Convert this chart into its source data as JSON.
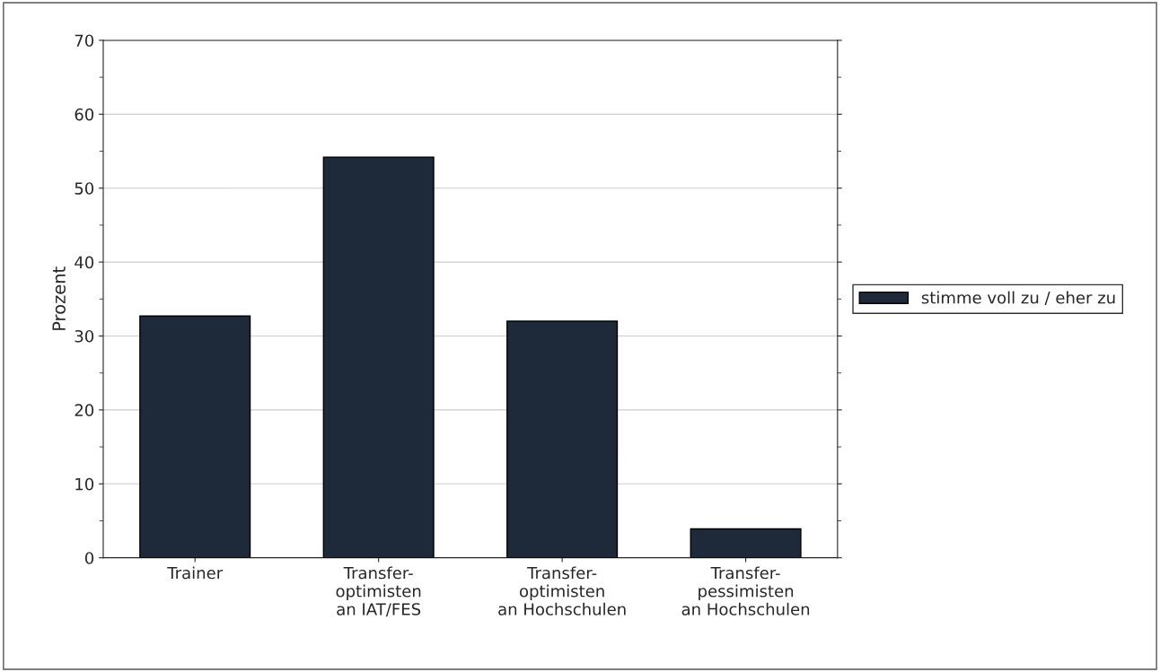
{
  "chart_data": {
    "type": "bar",
    "ylabel": "Prozent",
    "categories": [
      "Trainer",
      "Transfer-\noptimisten\nan IAT/FES",
      "Transfer-\noptimisten\nan Hochschulen",
      "Transfer-\npessimisten\nan Hochschulen"
    ],
    "series": [
      {
        "name": "stimme voll zu / eher zu",
        "color": "#1e2a3a",
        "values": [
          32.7,
          54.2,
          32.0,
          3.9
        ]
      }
    ],
    "ylim": [
      0,
      70
    ],
    "yticks": [
      0,
      10,
      20,
      30,
      40,
      50,
      60,
      70
    ],
    "grid": "y",
    "legend": "right"
  }
}
